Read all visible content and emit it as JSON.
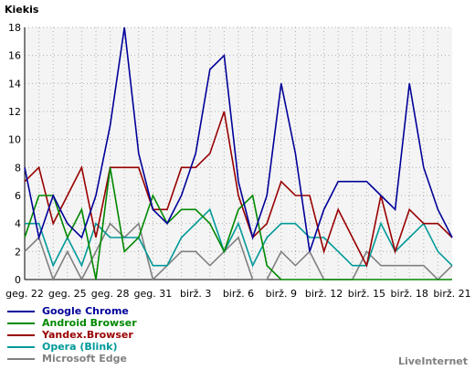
{
  "chart_data": {
    "type": "line",
    "ylabel": "Kiekis",
    "ylim": [
      0,
      18
    ],
    "yticks": [
      0,
      2,
      4,
      6,
      8,
      10,
      12,
      14,
      16,
      18
    ],
    "grid": true,
    "x_tick_labels": [
      "geg. 22",
      "geg. 25",
      "geg. 28",
      "geg. 31",
      "birž. 3",
      "birž. 6",
      "birž. 9",
      "birž. 12",
      "birž. 15",
      "birž. 18",
      "birž. 21"
    ],
    "legend_position": "bottom-left",
    "series": [
      {
        "name": "Google Chrome",
        "color": "#000099",
        "values": [
          8,
          3,
          6,
          4,
          3,
          6,
          11,
          18,
          9,
          5,
          4,
          6,
          9,
          15,
          16,
          7,
          3,
          6,
          14,
          9,
          2,
          5,
          7,
          7,
          7,
          6,
          5,
          14,
          8,
          5,
          3
        ]
      },
      {
        "name": "Android Browser",
        "color": "#008800",
        "values": [
          3,
          6,
          6,
          3,
          5,
          0,
          8,
          2,
          3,
          6,
          4,
          5,
          5,
          4,
          2,
          5,
          6,
          1,
          0,
          0,
          0,
          0,
          0,
          0,
          0,
          0,
          0,
          0,
          0,
          0,
          0
        ]
      },
      {
        "name": "Yandex.Browser",
        "color": "#990000",
        "values": [
          7,
          8,
          4,
          6,
          8,
          3,
          8,
          8,
          8,
          5,
          5,
          8,
          8,
          9,
          12,
          6,
          3,
          4,
          7,
          6,
          6,
          2,
          5,
          3,
          1,
          6,
          2,
          5,
          4,
          4,
          3
        ]
      },
      {
        "name": "Opera (Blink)",
        "color": "#009999",
        "values": [
          4,
          4,
          1,
          3,
          1,
          4,
          3,
          3,
          3,
          1,
          1,
          3,
          4,
          5,
          2,
          4,
          1,
          3,
          4,
          4,
          3,
          3,
          2,
          1,
          1,
          4,
          2,
          3,
          4,
          2,
          1
        ]
      },
      {
        "name": "Microsoft Edge",
        "color": "#808080",
        "values": [
          2,
          3,
          0,
          2,
          0,
          2,
          4,
          3,
          4,
          0,
          1,
          2,
          2,
          1,
          2,
          3,
          0,
          0,
          2,
          1,
          2,
          0,
          0,
          0,
          2,
          1,
          1,
          1,
          1,
          0,
          1
        ]
      }
    ]
  },
  "branding": "LiveInternet"
}
